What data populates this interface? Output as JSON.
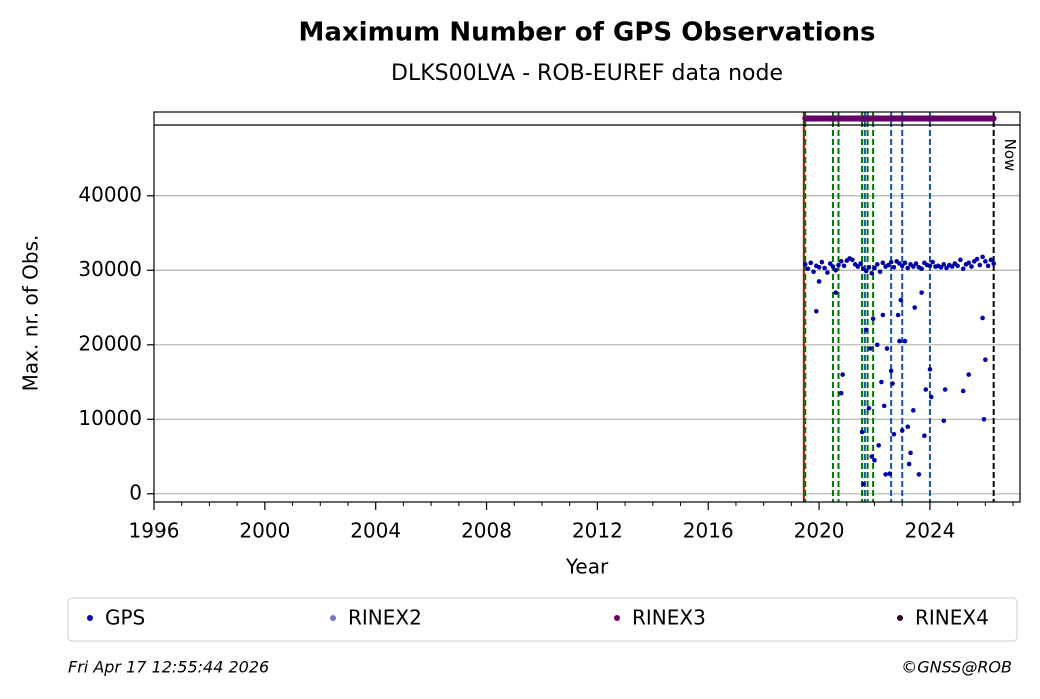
{
  "chart_data": {
    "type": "scatter",
    "title": "Maximum Number of GPS Observations",
    "subtitle": "DLKS00LVA - ROB-EUREF data node",
    "x_label": "Year",
    "y_label": "Max. nr. of Obs.",
    "xlim": [
      1996,
      2027.25
    ],
    "ylim": [
      -1100,
      49500
    ],
    "xticks": [
      1996,
      2000,
      2004,
      2008,
      2012,
      2016,
      2020,
      2024
    ],
    "xminorticks": [
      1997,
      1998,
      1999,
      2001,
      2002,
      2003,
      2005,
      2006,
      2007,
      2009,
      2010,
      2011,
      2013,
      2014,
      2015,
      2017,
      2018,
      2019,
      2021,
      2022,
      2023,
      2025,
      2026,
      2027
    ],
    "yticks": [
      0,
      10000,
      20000,
      30000,
      40000
    ],
    "grid": true,
    "series": [
      {
        "name": "GPS",
        "color": "#0000aa",
        "x": [
          2019.5,
          2019.6,
          2019.7,
          2019.8,
          2019.9,
          2020.0,
          2020.1,
          2020.2,
          2020.3,
          2020.4,
          2020.5,
          2020.6,
          2020.7,
          2020.8,
          2020.9,
          2021.0,
          2021.1,
          2021.2,
          2021.3,
          2021.4,
          2021.5,
          2021.6,
          2021.7,
          2021.8,
          2021.9,
          2022.0,
          2022.1,
          2022.2,
          2022.3,
          2022.4,
          2022.5,
          2022.6,
          2022.7,
          2022.8,
          2022.9,
          2023.0,
          2023.1,
          2023.2,
          2023.3,
          2023.4,
          2023.5,
          2023.6,
          2023.7,
          2023.8,
          2023.9,
          2024.0,
          2024.1,
          2024.2,
          2024.3,
          2024.4,
          2024.5,
          2024.6,
          2024.7,
          2024.8,
          2024.9,
          2025.0,
          2025.1,
          2025.2,
          2025.3,
          2025.4,
          2025.5,
          2025.6,
          2025.7,
          2025.8,
          2025.9,
          2026.0,
          2026.1,
          2026.2,
          2026.3,
          2019.9,
          2020.0,
          2020.6,
          2020.8,
          2020.85,
          2021.55,
          2021.6,
          2021.7,
          2021.8,
          2021.85,
          2021.9,
          2021.95,
          2022.0,
          2022.1,
          2022.15,
          2022.25,
          2022.3,
          2022.35,
          2022.4,
          2022.45,
          2022.55,
          2022.6,
          2022.65,
          2022.7,
          2022.85,
          2022.9,
          2022.95,
          2023.0,
          2023.1,
          2023.2,
          2023.25,
          2023.3,
          2023.4,
          2023.45,
          2023.6,
          2023.7,
          2023.8,
          2023.85,
          2024.0,
          2024.05,
          2024.5,
          2024.55,
          2025.2,
          2025.4,
          2025.9,
          2025.95,
          2026.0
        ],
        "values": [
          30800,
          30200,
          31000,
          29800,
          30600,
          30400,
          31100,
          30300,
          29700,
          30900,
          30500,
          30000,
          30700,
          31200,
          30600,
          31300,
          31600,
          31400,
          30800,
          30500,
          30900,
          30200,
          29900,
          30400,
          29600,
          30300,
          30800,
          29800,
          31000,
          30500,
          30700,
          31100,
          30400,
          31200,
          30900,
          30600,
          31000,
          30300,
          30800,
          30500,
          30900,
          30400,
          30200,
          31000,
          30700,
          30600,
          31100,
          30500,
          30600,
          30400,
          30800,
          30300,
          30700,
          30500,
          30900,
          30600,
          31400,
          30200,
          30800,
          31000,
          30500,
          31200,
          31500,
          30700,
          31800,
          31200,
          30600,
          31400,
          30900,
          24500,
          28500,
          27000,
          13500,
          16000,
          8300,
          1300,
          22000,
          11500,
          19500,
          5000,
          23500,
          4500,
          20000,
          6500,
          15000,
          24000,
          11800,
          2600,
          19500,
          2700,
          16500,
          14800,
          8000,
          24000,
          20500,
          26000,
          8500,
          20500,
          9000,
          4000,
          5500,
          11200,
          25000,
          2600,
          27000,
          7800,
          14000,
          16700,
          13000,
          9800,
          14000,
          13800,
          16000,
          23600,
          10000,
          18000
        ]
      },
      {
        "name": "RINEX2",
        "color": "#7777bb"
      },
      {
        "name": "RINEX3",
        "color": "#660066",
        "range": [
          2019.5,
          2026.3
        ]
      },
      {
        "name": "RINEX4",
        "color": "#330022"
      }
    ],
    "event_lines": [
      {
        "x": 2019.45,
        "color": "#cc0000"
      },
      {
        "x": 2019.5,
        "color": "#007700"
      },
      {
        "x": 2020.5,
        "color": "#007700"
      },
      {
        "x": 2020.7,
        "color": "#007700"
      },
      {
        "x": 2021.55,
        "color": "#007700"
      },
      {
        "x": 2021.75,
        "color": "#007700"
      },
      {
        "x": 2021.95,
        "color": "#007700"
      },
      {
        "x": 2021.65,
        "color": "#1155aa"
      },
      {
        "x": 2022.6,
        "color": "#1155aa"
      },
      {
        "x": 2023.0,
        "color": "#1155aa"
      },
      {
        "x": 2024.0,
        "color": "#1155aa"
      }
    ],
    "now": {
      "x": 2026.3,
      "label": "Now"
    },
    "timestamp": "Fri Apr 17 12:55:44 2026",
    "copyright": "©GNSS@ROB"
  }
}
